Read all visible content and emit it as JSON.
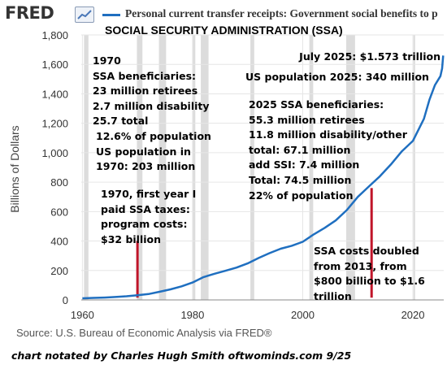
{
  "header": {
    "logo_text": "FRED",
    "logo_icon": "line-chart-icon",
    "legend_label": "Personal current transfer receipts: Government social benefits to p",
    "subtitle": "SOCIAL SECURITY ADMINISTRATION (SSA)"
  },
  "chart_data": {
    "type": "line",
    "ylabel": "Billions of Dollars",
    "xlim": [
      1959.8,
      2025.6
    ],
    "ylim": [
      0,
      1800
    ],
    "grid": true,
    "xticks": [
      "1960",
      "1980",
      "2000",
      "2020"
    ],
    "xtick_values": [
      1960,
      1980,
      2000,
      2020
    ],
    "yticks": [
      "0",
      "200",
      "400",
      "600",
      "800",
      "1,000",
      "1,200",
      "1,400",
      "1,600",
      "1,800"
    ],
    "ytick_values": [
      0,
      200,
      400,
      600,
      800,
      1000,
      1200,
      1400,
      1600,
      1800
    ],
    "recessions": [
      [
        1960.3,
        1961.1
      ],
      [
        1969.9,
        1970.9
      ],
      [
        1973.9,
        1975.2
      ],
      [
        1980.0,
        1980.5
      ],
      [
        1981.5,
        1982.9
      ],
      [
        1990.5,
        1991.2
      ],
      [
        2001.2,
        2001.9
      ],
      [
        2007.9,
        2009.5
      ],
      [
        2020.1,
        2020.4
      ]
    ],
    "series": [
      {
        "color": "#1f6fc0",
        "x": [
          1960,
          1962,
          1964,
          1966,
          1968,
          1970,
          1972,
          1974,
          1976,
          1978,
          1980,
          1982,
          1984,
          1986,
          1988,
          1990,
          1992,
          1994,
          1996,
          1998,
          2000,
          2002,
          2004,
          2006,
          2008,
          2010,
          2012,
          2014,
          2016,
          2018,
          2020,
          2022,
          2023,
          2024,
          2025.0,
          2025.3,
          2025.5
        ],
        "y": [
          11,
          14,
          16,
          20,
          25,
          32,
          40,
          55,
          72,
          92,
          118,
          155,
          178,
          198,
          220,
          248,
          285,
          318,
          348,
          368,
          395,
          445,
          490,
          540,
          610,
          700,
          770,
          840,
          920,
          1010,
          1080,
          1230,
          1360,
          1460,
          1520,
          1573,
          1660
        ]
      }
    ],
    "markers": [
      {
        "x": 1970,
        "y_low": 15,
        "y_high": 400,
        "color": "#c0152a"
      },
      {
        "x": 2012.5,
        "y_low": 15,
        "y_high": 760,
        "color": "#c0152a"
      }
    ]
  },
  "annotations": {
    "note_1970": "1970\nSSA beneficiaries:\n23 million retirees\n2.7 million disability\n25.7 total",
    "note_1970_pop": "12.6% of population\nUS population in\n1970: 203 million",
    "note_taxes": "1970, first year I\npaid SSA taxes:\nprogram costs:\n$32 billion",
    "note_july": "July 2025: $1.573 trillion",
    "note_pop2025": "US population 2025: 340 million",
    "note_2025": "2025 SSA beneficiaries:\n55.3 million retirees\n11.8 million disability/other\ntotal: 67.1 million\nadd SSI: 7.4 million\nTotal: 74.5 million\n22% of population",
    "note_doubled": "SSA costs doubled\nfrom 2013, from\n$800 billion to $1.6\ntrillion"
  },
  "footer": {
    "source": "Source: U.S. Bureau of Economic Analysis via FRED®",
    "credit": "chart notated by Charles Hugh Smith   oftwominds.com  9/25"
  }
}
